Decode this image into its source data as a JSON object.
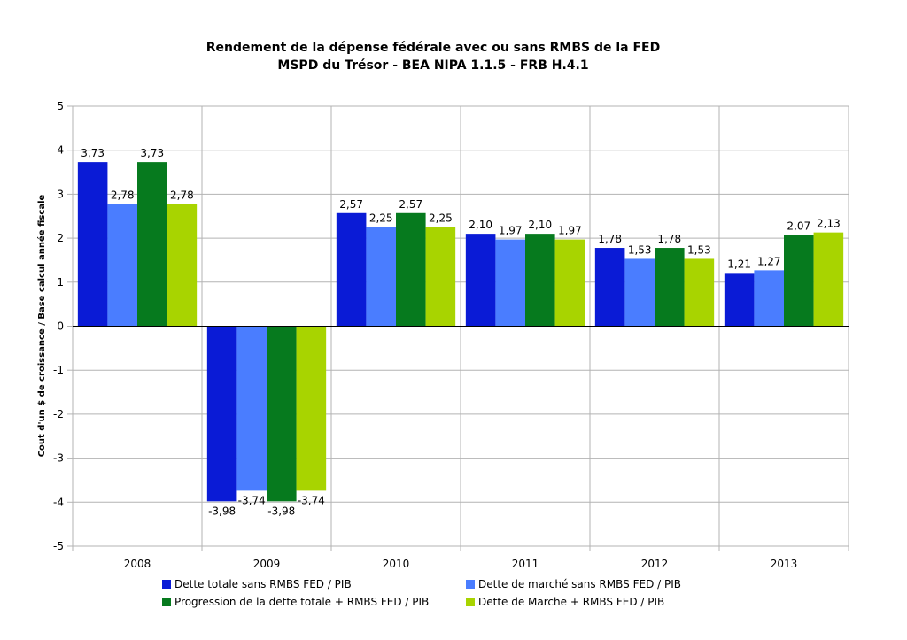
{
  "chart_data": {
    "type": "bar",
    "title": "Rendement de la dépense fédérale avec ou sans RMBS de la FED",
    "subtitle": "MSPD du Trésor - BEA NIPA 1.1.5 - FRB H.4.1",
    "xlabel": "",
    "ylabel": "Cout d'un $ de croissance / Base calcul année fiscale",
    "ylim": [
      -5,
      5
    ],
    "yticks": [
      "5",
      "4",
      "3",
      "2",
      "1",
      "0",
      "-1",
      "-2",
      "-3",
      "-4",
      "-5"
    ],
    "grid": true,
    "legend_position": "bottom",
    "categories": [
      "2008",
      "2009",
      "2010",
      "2011",
      "2012",
      "2013"
    ],
    "series": [
      {
        "name": "Dette totale sans RMBS FED / PIB",
        "color": "#0a1bd6",
        "values": [
          3.73,
          -3.98,
          2.57,
          2.1,
          1.78,
          1.21
        ],
        "labels": [
          "3,73",
          "-3,98",
          "2,57",
          "2,10",
          "1,78",
          "1,21"
        ]
      },
      {
        "name": "Dette de marché sans RMBS FED / PIB",
        "color": "#4a7dff",
        "values": [
          2.78,
          -3.74,
          2.25,
          1.97,
          1.53,
          1.27
        ],
        "labels": [
          "2,78",
          "-3,74",
          "2,25",
          "1,97",
          "1,53",
          "1,27"
        ]
      },
      {
        "name": "Progression de la dette totale + RMBS FED / PIB",
        "color": "#067a1e",
        "values": [
          3.73,
          -3.98,
          2.57,
          2.1,
          1.78,
          2.07
        ],
        "labels": [
          "3,73",
          "-3,98",
          "2,57",
          "2,10",
          "1,78",
          "2,07"
        ]
      },
      {
        "name": "Dette de Marche + RMBS FED / PIB",
        "color": "#a8d400",
        "values": [
          2.78,
          -3.74,
          2.25,
          1.97,
          1.53,
          2.13
        ],
        "labels": [
          "2,78",
          "-3,74",
          "2,25",
          "1,97",
          "1,53",
          "2,13"
        ]
      }
    ]
  }
}
